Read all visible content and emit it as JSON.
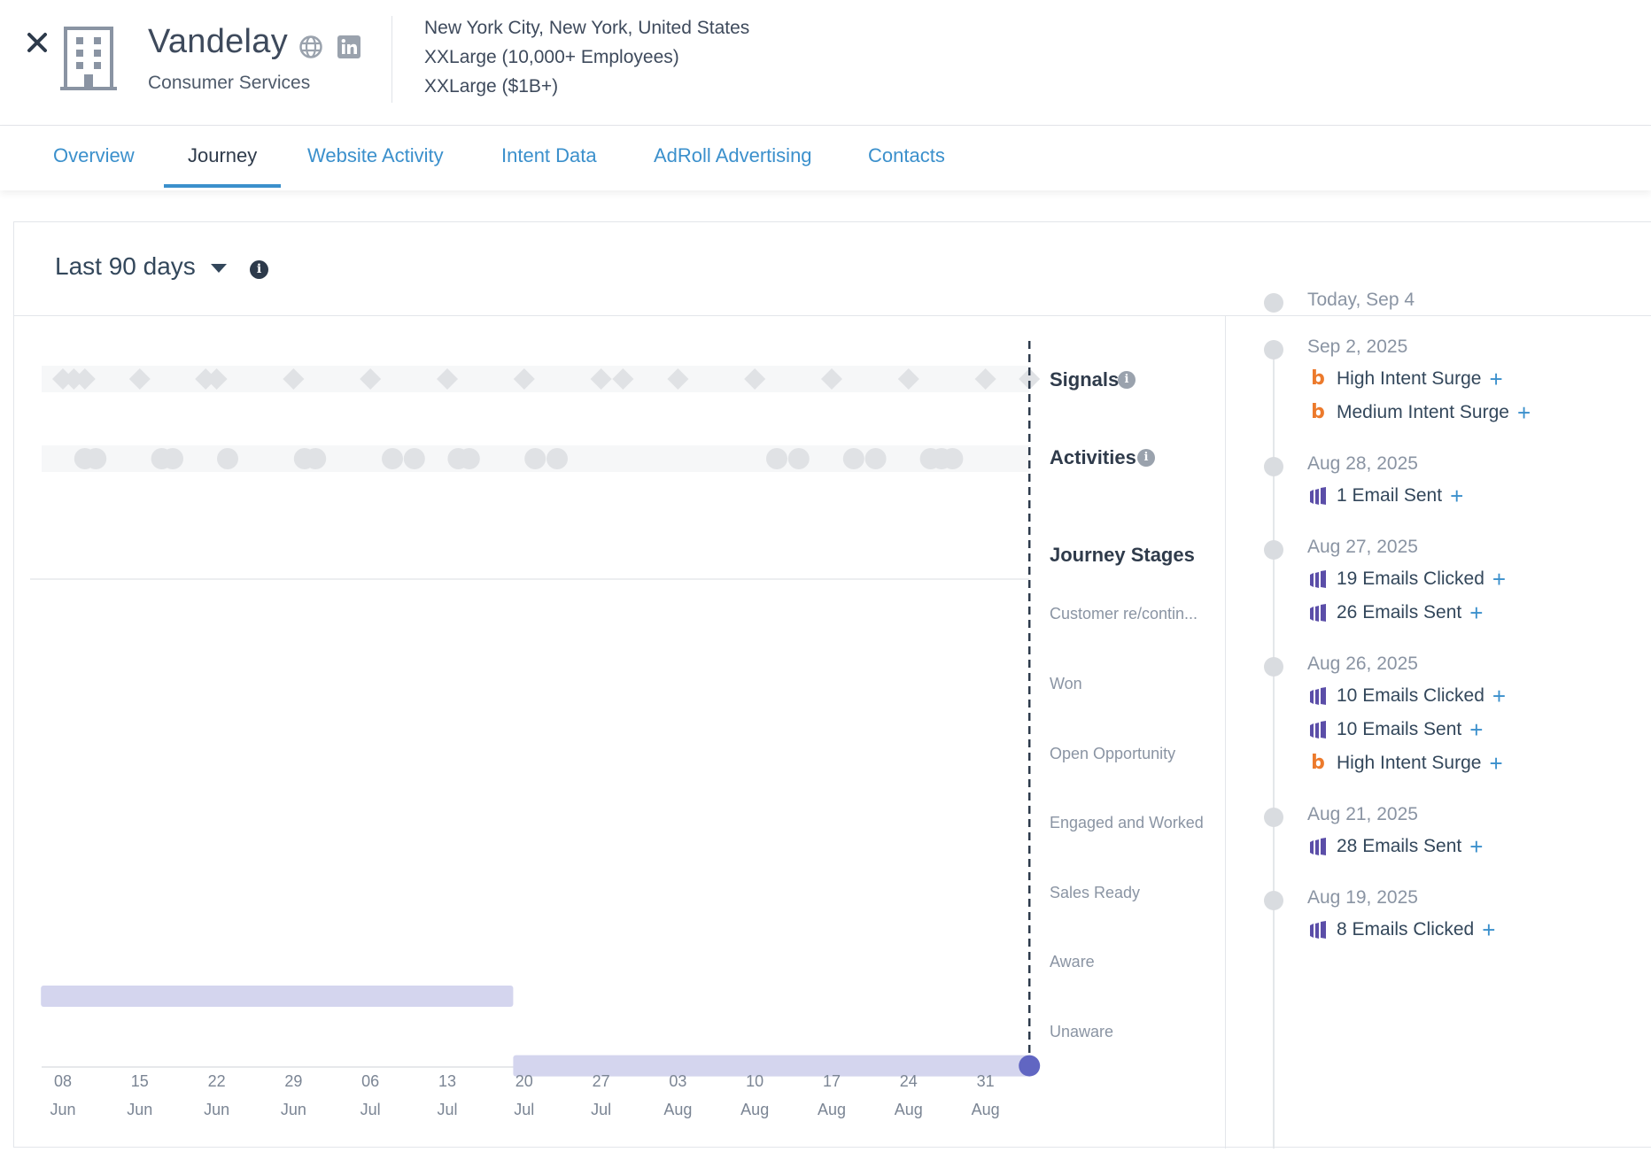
{
  "header": {
    "company_name": "Vandelay",
    "industry": "Consumer Services",
    "location": "New York City, New York, United States",
    "employees": "XXLarge (10,000+ Employees)",
    "revenue": "XXLarge ($1B+)"
  },
  "tabs": [
    {
      "label": "Overview",
      "active": false
    },
    {
      "label": "Journey",
      "active": true
    },
    {
      "label": "Website Activity",
      "active": false
    },
    {
      "label": "Intent Data",
      "active": false
    },
    {
      "label": "AdRoll Advertising",
      "active": false
    },
    {
      "label": "Contacts",
      "active": false
    }
  ],
  "filter": {
    "range_label": "Last 90 days"
  },
  "chart_data": {
    "type": "timeline",
    "rows": {
      "signals": "Signals",
      "activities": "Activities",
      "journey_stages": "Journey Stages"
    },
    "stages": [
      "Customer re/contin...",
      "Won",
      "Open Opportunity",
      "Engaged and Worked",
      "Sales Ready",
      "Aware",
      "Unaware"
    ],
    "x_ticks": [
      {
        "day": "08",
        "month": "Jun"
      },
      {
        "day": "15",
        "month": "Jun"
      },
      {
        "day": "22",
        "month": "Jun"
      },
      {
        "day": "29",
        "month": "Jun"
      },
      {
        "day": "06",
        "month": "Jul"
      },
      {
        "day": "13",
        "month": "Jul"
      },
      {
        "day": "20",
        "month": "Jul"
      },
      {
        "day": "27",
        "month": "Jul"
      },
      {
        "day": "03",
        "month": "Aug"
      },
      {
        "day": "10",
        "month": "Aug"
      },
      {
        "day": "17",
        "month": "Aug"
      },
      {
        "day": "24",
        "month": "Aug"
      },
      {
        "day": "31",
        "month": "Aug"
      }
    ],
    "stage_spans": [
      {
        "stage": "Aware",
        "from": "2025-06-06",
        "to": "2025-07-19"
      },
      {
        "stage": "Unaware",
        "from": "2025-07-19",
        "to": "2025-09-04"
      }
    ],
    "current_stage": "Unaware",
    "today": "2025-09-04",
    "signal_dates": [
      "2025-06-08",
      "2025-06-09",
      "2025-06-10",
      "2025-06-15",
      "2025-06-21",
      "2025-06-22",
      "2025-06-29",
      "2025-07-06",
      "2025-07-13",
      "2025-07-20",
      "2025-07-27",
      "2025-07-29",
      "2025-08-03",
      "2025-08-10",
      "2025-08-17",
      "2025-08-24",
      "2025-08-31",
      "2025-09-04"
    ],
    "activity_dates": [
      "2025-06-10",
      "2025-06-11",
      "2025-06-17",
      "2025-06-18",
      "2025-06-23",
      "2025-06-30",
      "2025-07-01",
      "2025-07-08",
      "2025-07-10",
      "2025-07-14",
      "2025-07-15",
      "2025-07-21",
      "2025-07-23",
      "2025-08-12",
      "2025-08-14",
      "2025-08-19",
      "2025-08-21",
      "2025-08-26",
      "2025-08-27",
      "2025-08-28"
    ]
  },
  "timeline": [
    {
      "date": "Today, Sep 4",
      "items": []
    },
    {
      "date": "Sep 2, 2025",
      "items": [
        {
          "source": "bombora",
          "text": "High Intent Surge"
        },
        {
          "source": "bombora",
          "text": "Medium Intent Surge"
        }
      ]
    },
    {
      "date": "Aug 28, 2025",
      "items": [
        {
          "source": "email",
          "text": "1 Email Sent"
        }
      ]
    },
    {
      "date": "Aug 27, 2025",
      "items": [
        {
          "source": "email",
          "text": "19 Emails Clicked"
        },
        {
          "source": "email",
          "text": "26 Emails Sent"
        }
      ]
    },
    {
      "date": "Aug 26, 2025",
      "items": [
        {
          "source": "email",
          "text": "10 Emails Clicked"
        },
        {
          "source": "email",
          "text": "10 Emails Sent"
        },
        {
          "source": "bombora",
          "text": "High Intent Surge"
        }
      ]
    },
    {
      "date": "Aug 21, 2025",
      "items": [
        {
          "source": "email",
          "text": "28 Emails Sent"
        }
      ]
    },
    {
      "date": "Aug 19, 2025",
      "items": [
        {
          "source": "email",
          "text": "8 Emails Clicked"
        }
      ]
    }
  ],
  "colors": {
    "accent": "#3b90cc",
    "stage_bar": "#d4d5ee",
    "current_marker": "#6166c2",
    "bombora": "#ec7a2c",
    "email_icon": "#5b4ea8",
    "marker_grey": "#e0e2e5"
  }
}
